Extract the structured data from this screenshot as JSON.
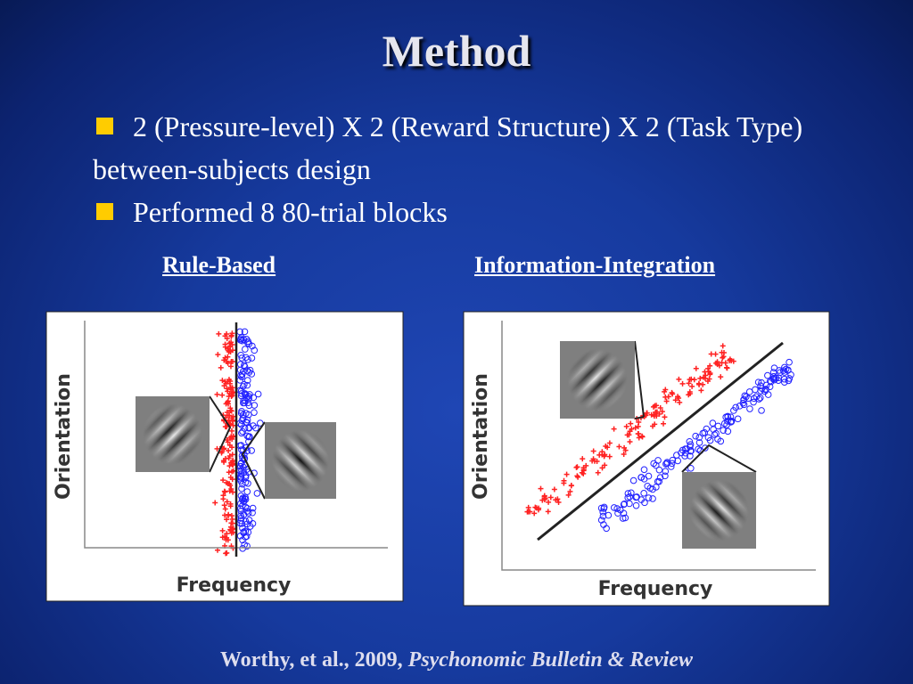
{
  "title": "Method",
  "bullets": [
    "2 (Pressure-level) X 2 (Reward Structure) X 2 (Task Type) between-subjects design",
    "Performed 8 80-trial blocks"
  ],
  "panels": [
    {
      "heading": "Rule-Based",
      "y_label": "Orientation",
      "x_label": "Frequency"
    },
    {
      "heading": "Information-Integration",
      "y_label": "Orientation",
      "x_label": "Frequency"
    }
  ],
  "citation": {
    "authors": "Worthy, et al., 2009,",
    "journal": "Psychonomic Bulletin & Review"
  }
}
